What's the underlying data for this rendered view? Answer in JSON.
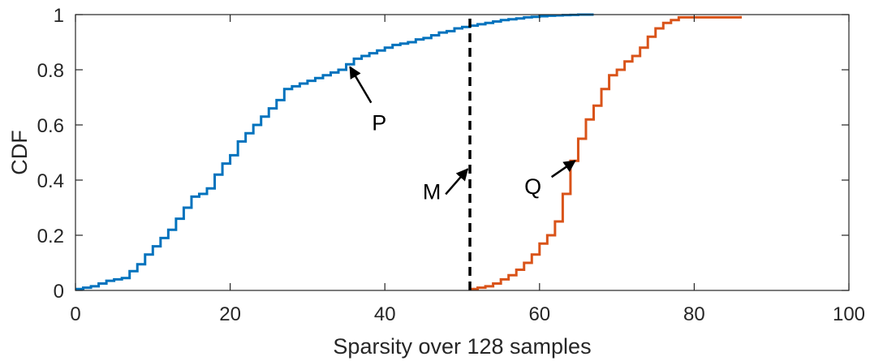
{
  "chart_data": {
    "type": "line",
    "title": "",
    "xlabel": "Sparsity over 128 samples",
    "ylabel": "CDF",
    "xlim": [
      0,
      100
    ],
    "ylim": [
      0,
      1
    ],
    "xticks": [
      0,
      20,
      40,
      60,
      80,
      100
    ],
    "yticks": [
      0,
      0.2,
      0.4,
      0.6,
      0.8,
      1
    ],
    "xtick_labels": [
      "0",
      "20",
      "40",
      "60",
      "80",
      "100"
    ],
    "ytick_labels": [
      "0",
      "0.2",
      "0.4",
      "0.6",
      "0.8",
      "1"
    ],
    "grid": false,
    "series": [
      {
        "name": "P",
        "style": "stairs",
        "color": "#0072BD",
        "x": [
          0,
          1,
          2,
          3,
          4,
          5,
          6,
          7,
          8,
          9,
          10,
          11,
          12,
          13,
          14,
          15,
          16,
          17,
          18,
          19,
          20,
          21,
          22,
          23,
          24,
          25,
          26,
          27,
          28,
          29,
          30,
          31,
          32,
          33,
          34,
          35,
          36,
          37,
          38,
          39,
          40,
          41,
          42,
          43,
          44,
          45,
          46,
          47,
          48,
          49,
          50,
          51,
          52,
          53,
          54,
          55,
          56,
          57,
          58,
          59,
          60,
          61,
          62,
          63,
          64,
          65,
          66,
          67
        ],
        "y": [
          0.005,
          0.01,
          0.015,
          0.025,
          0.035,
          0.04,
          0.045,
          0.07,
          0.095,
          0.13,
          0.16,
          0.19,
          0.22,
          0.26,
          0.3,
          0.34,
          0.35,
          0.37,
          0.42,
          0.46,
          0.49,
          0.54,
          0.57,
          0.6,
          0.63,
          0.66,
          0.69,
          0.73,
          0.74,
          0.75,
          0.76,
          0.77,
          0.78,
          0.79,
          0.8,
          0.82,
          0.84,
          0.85,
          0.86,
          0.87,
          0.88,
          0.89,
          0.895,
          0.9,
          0.91,
          0.915,
          0.925,
          0.935,
          0.94,
          0.95,
          0.955,
          0.96,
          0.965,
          0.97,
          0.975,
          0.98,
          0.983,
          0.986,
          0.99,
          0.992,
          0.994,
          0.996,
          0.997,
          0.998,
          0.999,
          1,
          1,
          1
        ]
      },
      {
        "name": "Q",
        "style": "stairs",
        "color": "#D95319",
        "x": [
          51,
          52,
          53,
          54,
          55,
          56,
          57,
          58,
          59,
          60,
          61,
          62,
          63,
          64,
          65,
          66,
          67,
          68,
          69,
          70,
          71,
          72,
          73,
          74,
          75,
          76,
          77,
          78,
          79,
          80,
          81,
          82,
          83,
          84,
          85,
          86
        ],
        "y": [
          0.005,
          0.01,
          0.015,
          0.025,
          0.04,
          0.055,
          0.075,
          0.1,
          0.13,
          0.17,
          0.2,
          0.25,
          0.35,
          0.47,
          0.55,
          0.62,
          0.67,
          0.73,
          0.78,
          0.8,
          0.83,
          0.85,
          0.88,
          0.92,
          0.95,
          0.97,
          0.98,
          0.99,
          0.99,
          0.99,
          0.99,
          0.99,
          0.99,
          0.99,
          0.99,
          0.995
        ]
      },
      {
        "name": "M",
        "style": "vertical-dashed",
        "color": "#000000",
        "x": [
          51,
          51
        ],
        "y": [
          0,
          1
        ]
      }
    ],
    "annotations": [
      {
        "text": "P",
        "points_to": [
          35.5,
          0.81
        ]
      },
      {
        "text": "M",
        "points_to": [
          50.7,
          0.44
        ]
      },
      {
        "text": "Q",
        "points_to": [
          64.6,
          0.47
        ]
      }
    ]
  }
}
